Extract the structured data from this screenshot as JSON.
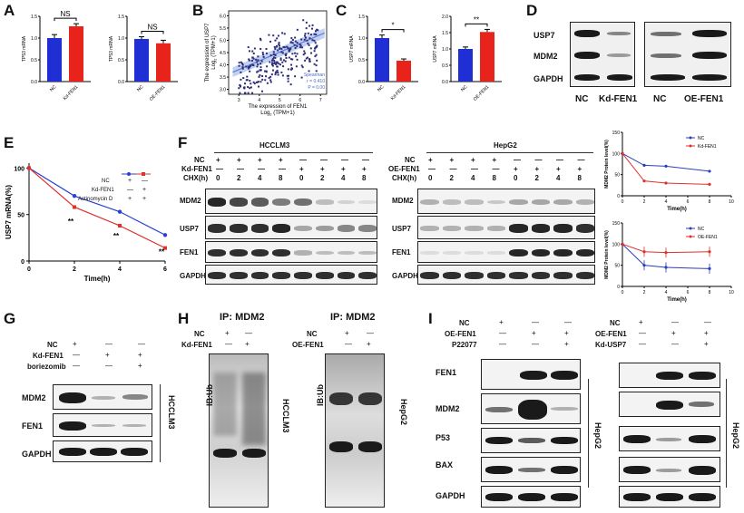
{
  "panels": {
    "A": {
      "letter": "A",
      "chart1": {
        "ylabel": "TP53 mRNA",
        "categories": [
          "NC",
          "Kd-FEN1"
        ],
        "values": [
          1.0,
          1.27
        ],
        "errors": [
          0.08,
          0.06
        ],
        "sig": "NS",
        "yticks": [
          "0.0",
          "0.5",
          "1.0",
          "1.5"
        ]
      },
      "chart2": {
        "ylabel": "TP53 mRNA",
        "categories": [
          "NC",
          "OE-FEN1"
        ],
        "values": [
          0.98,
          0.88
        ],
        "errors": [
          0.05,
          0.07
        ],
        "sig": "NS",
        "yticks": [
          "0.0",
          "0.5",
          "1.0",
          "1.5"
        ]
      }
    },
    "B": {
      "letter": "B",
      "ylabel1": "The expression of USP7",
      "ylabel2": "Log",
      "ylabel2_sub": "2",
      "ylabel2_tail": " (TPM+1)",
      "xlabel1": "The expression of FEN1",
      "xlabel2": "Log",
      "xlabel2_sub": "2",
      "xlabel2_tail": " (TPM+1)",
      "stat1": "Spearman",
      "stat2": "r = 0.410",
      "stat3": "P = 0.00",
      "xticks": [
        "3",
        "4",
        "5",
        "6",
        "7"
      ],
      "yticks": [
        "3.0",
        "3.5",
        "4.0",
        "4.5",
        "5.0",
        "5.5",
        "6.0"
      ]
    },
    "C": {
      "letter": "C",
      "chart1": {
        "ylabel": "USP7 mRNA",
        "categories": [
          "NC",
          "Kd-FEN1"
        ],
        "values": [
          1.0,
          0.48
        ],
        "errors": [
          0.07,
          0.04
        ],
        "sig": "*",
        "yticks": [
          "0.0",
          "0.5",
          "1.0",
          "1.5"
        ]
      },
      "chart2": {
        "ylabel": "USP7 mRNA",
        "categories": [
          "NC",
          "OE-FEN1"
        ],
        "values": [
          1.0,
          1.52
        ],
        "errors": [
          0.06,
          0.08
        ],
        "sig": "**",
        "yticks": [
          "0.0",
          "0.5",
          "1.0",
          "1.5",
          "2.0"
        ]
      }
    },
    "D": {
      "letter": "D",
      "rows": [
        "USP7",
        "MDM2",
        "GAPDH"
      ],
      "cols": [
        "NC",
        "Kd-FEN1",
        "NC",
        "OE-FEN1"
      ]
    },
    "E": {
      "letter": "E",
      "ylabel": "USP7 mRNA(%)",
      "xlabel": "Time(h)",
      "xticks": [
        "0",
        "2",
        "4",
        "6"
      ],
      "yticks": [
        "0",
        "50",
        "100"
      ],
      "legend_rows": [
        {
          "label": "NC",
          "v1": "+",
          "v2": "—"
        },
        {
          "label": "Kd-FEN1",
          "v1": "—",
          "v2": "+"
        },
        {
          "label": "Actinomycin D",
          "v1": "+",
          "v2": "+"
        }
      ],
      "sig": [
        "**",
        "**",
        "**"
      ]
    },
    "F": {
      "letter": "F",
      "cell1": "HCCLM3",
      "cell2": "HepG2",
      "hdr1": {
        "r1": "NC",
        "r2": "Kd-FEN1",
        "r3": "CHX(h)"
      },
      "hdr2": {
        "r1": "NC",
        "r2": "OE-FEN1",
        "r3": "CHX(h)"
      },
      "signs_top": [
        "+",
        "+",
        "+",
        "+",
        "—",
        "—",
        "—",
        "—"
      ],
      "signs_mid": [
        "—",
        "—",
        "—",
        "—",
        "+",
        "+",
        "+",
        "+"
      ],
      "chx": [
        "0",
        "2",
        "4",
        "8",
        "0",
        "2",
        "4",
        "8"
      ],
      "rows1": [
        "MDM2",
        "USP7",
        "FEN1",
        "GAPDH"
      ],
      "rows2": [
        "MDM2",
        "USP7",
        "FEN1",
        "GAPDH"
      ],
      "g1": {
        "ylabel": "MDM2 Protein level(%)",
        "xlabel": "Time(h)",
        "legend": [
          "NC",
          "Kd-FEN1"
        ],
        "xticks": [
          "0",
          "2",
          "4",
          "6",
          "8",
          "10"
        ],
        "yticks": [
          "0",
          "50",
          "100",
          "150"
        ]
      },
      "g2": {
        "ylabel": "MDM2 Protein level(%)",
        "xlabel": "Time(h)",
        "legend": [
          "NC",
          "OE-FEN1"
        ],
        "xticks": [
          "0",
          "2",
          "4",
          "6",
          "8",
          "10"
        ],
        "yticks": [
          "0",
          "50",
          "100",
          "150"
        ]
      }
    },
    "G": {
      "letter": "G",
      "rows_hdr": [
        "NC",
        "Kd-FEN1",
        "boriezomib"
      ],
      "signs": [
        [
          "+",
          "—",
          "—"
        ],
        [
          "—",
          "+",
          "+"
        ],
        [
          "—",
          "—",
          "+"
        ]
      ],
      "rows": [
        "MDM2",
        "FEN1",
        "GAPDH"
      ],
      "cell": "HCCLM3"
    },
    "H": {
      "letter": "H",
      "ip1": "IP: MDM2",
      "ip2": "IP: MDM2",
      "hdr1": [
        "NC",
        "Kd-FEN1"
      ],
      "hdr2": [
        "NC",
        "OE-FEN1"
      ],
      "signs1": [
        [
          "+",
          "—"
        ],
        [
          "—",
          "+"
        ]
      ],
      "signs2": [
        [
          "+",
          "—"
        ],
        [
          "—",
          "+"
        ]
      ],
      "ib": "IB:Ub",
      "cell1": "HCCLM3",
      "cell2": "HepG2"
    },
    "I": {
      "letter": "I",
      "hdr1": [
        "NC",
        "OE-FEN1",
        "P22077"
      ],
      "signs1": [
        [
          "+",
          "—",
          "—"
        ],
        [
          "—",
          "+",
          "+"
        ],
        [
          "—",
          "—",
          "+"
        ]
      ],
      "hdr2": [
        "NC",
        "OE-FEN1",
        "Kd-USP7"
      ],
      "signs2": [
        [
          "+",
          "—",
          "—"
        ],
        [
          "—",
          "+",
          "+"
        ],
        [
          "—",
          "—",
          "+"
        ]
      ],
      "rows": [
        "FEN1",
        "MDM2",
        "P53",
        "BAX",
        "GAPDH"
      ],
      "cell": "HepG2"
    }
  },
  "chart_data": [
    {
      "type": "bar",
      "panel": "A-left",
      "categories": [
        "NC",
        "Kd-FEN1"
      ],
      "values": [
        1.0,
        1.27
      ],
      "ylabel": "TP53 mRNA",
      "ylim": [
        0,
        1.5
      ]
    },
    {
      "type": "bar",
      "panel": "A-right",
      "categories": [
        "NC",
        "OE-FEN1"
      ],
      "values": [
        0.98,
        0.88
      ],
      "ylabel": "TP53 mRNA",
      "ylim": [
        0,
        1.5
      ]
    },
    {
      "type": "scatter",
      "panel": "B",
      "xlabel": "The expression of FEN1",
      "ylabel": "The expression of USP7",
      "xlim": [
        2.5,
        7.3
      ],
      "ylim": [
        2.8,
        6.2
      ]
    },
    {
      "type": "bar",
      "panel": "C-left",
      "categories": [
        "NC",
        "Kd-FEN1"
      ],
      "values": [
        1.0,
        0.48
      ],
      "ylabel": "USP7 mRNA",
      "ylim": [
        0,
        1.5
      ]
    },
    {
      "type": "bar",
      "panel": "C-right",
      "categories": [
        "NC",
        "OE-FEN1"
      ],
      "values": [
        1.0,
        1.52
      ],
      "ylabel": "USP7 mRNA",
      "ylim": [
        0,
        2.0
      ]
    },
    {
      "type": "line",
      "panel": "E",
      "x": [
        0,
        2,
        4,
        6
      ],
      "series": [
        {
          "values": [
            100,
            70,
            53,
            28
          ]
        },
        {
          "values": [
            100,
            58,
            38,
            14
          ]
        }
      ],
      "ylabel": "USP7 mRNA(%)",
      "xlabel": "Time(h)",
      "ylim": [
        0,
        100
      ]
    },
    {
      "type": "line",
      "panel": "F-top",
      "x": [
        0,
        2,
        4,
        8
      ],
      "series": [
        {
          "name": "NC",
          "values": [
            100,
            72,
            70,
            58
          ]
        },
        {
          "name": "Kd-FEN1",
          "values": [
            100,
            35,
            30,
            27
          ]
        }
      ],
      "ylabel": "MDM2 Protein level(%)",
      "xlabel": "Time(h)",
      "ylim": [
        0,
        150
      ]
    },
    {
      "type": "line",
      "panel": "F-bottom",
      "x": [
        0,
        2,
        4,
        8
      ],
      "series": [
        {
          "name": "NC",
          "values": [
            100,
            50,
            45,
            42
          ]
        },
        {
          "name": "OE-FEN1",
          "values": [
            100,
            82,
            80,
            82
          ]
        }
      ],
      "ylabel": "MDM2 Protein level(%)",
      "xlabel": "Time(h)",
      "ylim": [
        0,
        150
      ]
    }
  ]
}
